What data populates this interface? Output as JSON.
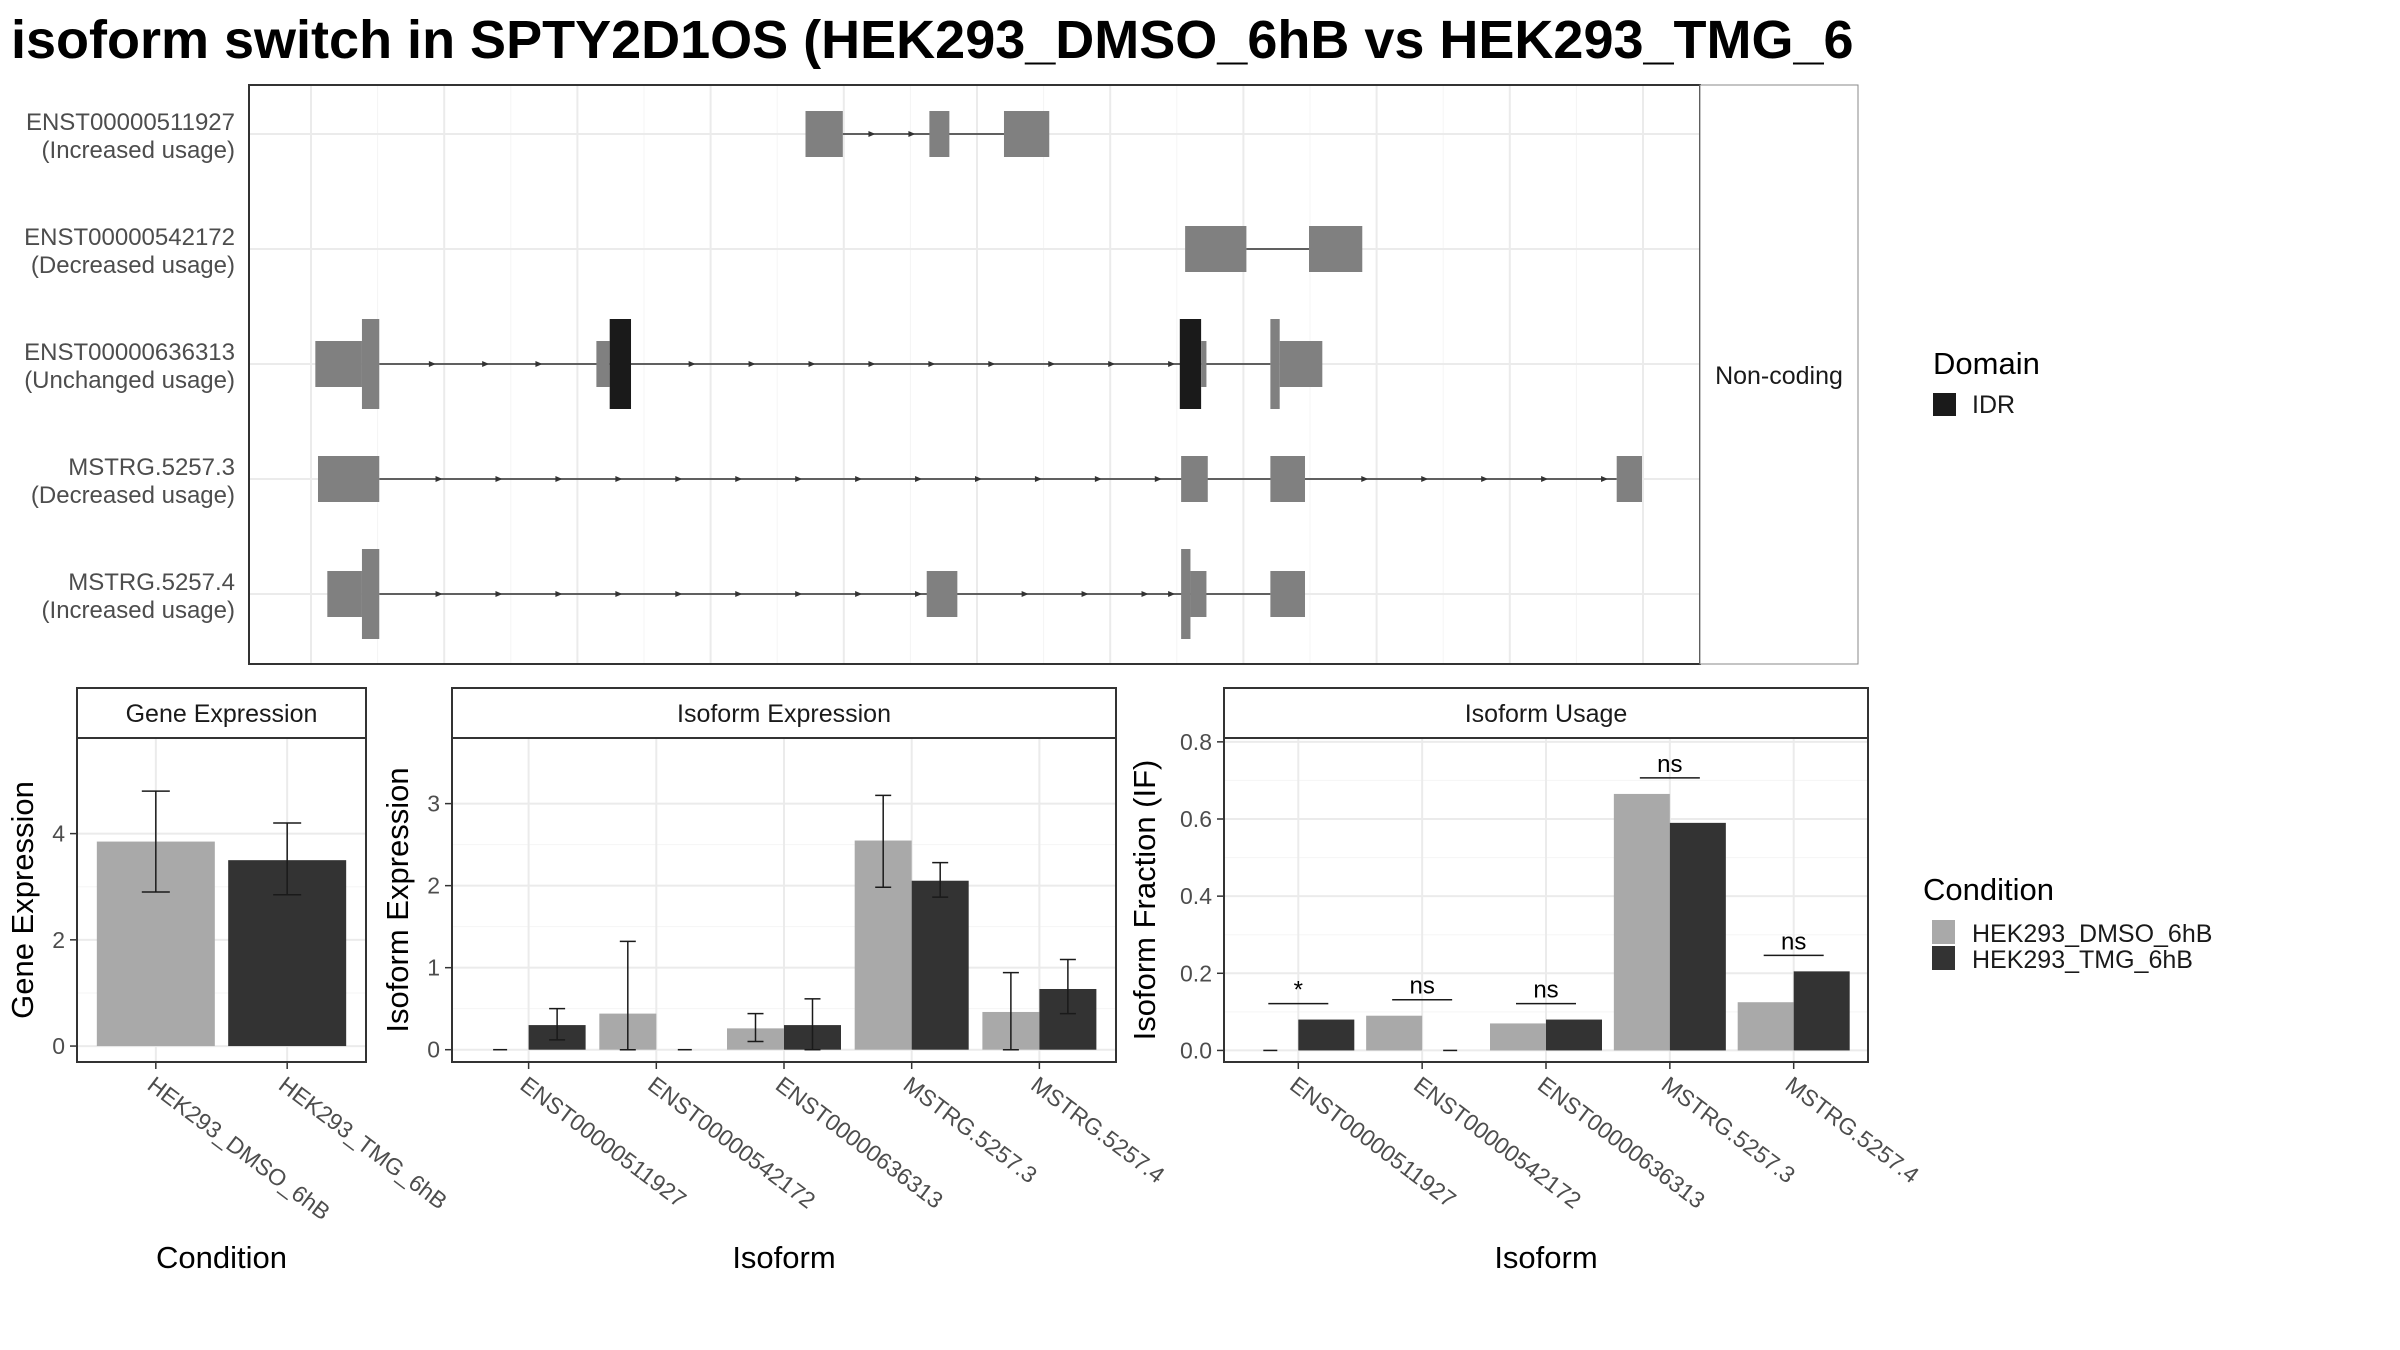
{
  "title": "isoform switch in SPTY2D1OS (HEK293_DMSO_6hB vs HEK293_TMG_6",
  "chart_data": [
    {
      "type": "transcript-structure",
      "panel": "isoform structure",
      "strip_label": "Non-coding",
      "x_range": [
        0,
        1
      ],
      "transcripts": [
        {
          "name": "ENST00000511927",
          "usage": "(Increased usage)",
          "exons": [
            [
              0.369,
              0.397,
              "s"
            ],
            [
              0.462,
              0.477,
              "s"
            ],
            [
              0.518,
              0.552,
              "s"
            ]
          ],
          "arrows": [
            0.42,
            0.45,
            0.47
          ],
          "connect": [
            0.397,
            0.518
          ]
        },
        {
          "name": "ENST00000542172",
          "usage": "(Decreased usage)",
          "exons": [
            [
              0.654,
              0.7,
              "s"
            ],
            [
              0.747,
              0.787,
              "s"
            ]
          ],
          "arrows": [],
          "connect": [
            0.7,
            0.747
          ]
        },
        {
          "name": "ENST00000636313",
          "usage": "(Unchanged usage)",
          "exons": [
            [
              0.001,
              0.036,
              "s"
            ],
            [
              0.036,
              0.049,
              "t"
            ],
            [
              0.212,
              0.222,
              "s"
            ],
            [
              0.222,
              0.238,
              "d"
            ],
            [
              0.65,
              0.666,
              "d"
            ],
            [
              0.666,
              0.67,
              "s"
            ],
            [
              0.718,
              0.725,
              "t"
            ],
            [
              0.725,
              0.757,
              "s"
            ]
          ],
          "arrows": [
            0.09,
            0.13,
            0.17,
            0.285,
            0.33,
            0.375,
            0.42,
            0.465,
            0.51,
            0.555,
            0.6,
            0.645
          ],
          "connect": [
            0.049,
            0.718
          ]
        },
        {
          "name": "MSTRG.5257.3",
          "usage": "(Decreased usage)",
          "exons": [
            [
              0.003,
              0.049,
              "s"
            ],
            [
              0.651,
              0.671,
              "s"
            ],
            [
              0.718,
              0.744,
              "s"
            ],
            [
              0.978,
              0.997,
              "s"
            ]
          ],
          "arrows": [
            0.095,
            0.14,
            0.185,
            0.23,
            0.275,
            0.32,
            0.365,
            0.41,
            0.455,
            0.5,
            0.545,
            0.59,
            0.635,
            0.79,
            0.835,
            0.88,
            0.925,
            0.97
          ],
          "connect": [
            0.049,
            0.978
          ]
        },
        {
          "name": "MSTRG.5257.4",
          "usage": "(Increased usage)",
          "exons": [
            [
              0.01,
              0.036,
              "s"
            ],
            [
              0.036,
              0.049,
              "t"
            ],
            [
              0.46,
              0.483,
              "s"
            ],
            [
              0.651,
              0.658,
              "t"
            ],
            [
              0.658,
              0.67,
              "s"
            ],
            [
              0.718,
              0.744,
              "s"
            ]
          ],
          "arrows": [
            0.095,
            0.14,
            0.185,
            0.23,
            0.275,
            0.32,
            0.365,
            0.41,
            0.455,
            0.535,
            0.58,
            0.625,
            0.645
          ],
          "connect": [
            0.049,
            0.718
          ]
        }
      ]
    },
    {
      "type": "bar",
      "panel": "Gene Expression",
      "xlabel": "Condition",
      "ylabel": "Gene Expression",
      "ylim": [
        -0.3,
        5.8
      ],
      "yticks": [
        0,
        2,
        4
      ],
      "categories": [
        "HEK293_DMSO_6hB",
        "HEK293_TMG_6hB"
      ],
      "values": [
        3.85,
        3.5
      ],
      "errors": [
        [
          2.9,
          4.8
        ],
        [
          2.85,
          4.2
        ]
      ],
      "fills": [
        "#a9a9a9",
        "#333333"
      ]
    },
    {
      "type": "bar",
      "panel": "Isoform Expression",
      "xlabel": "Isoform",
      "ylabel": "Isoform Expression",
      "ylim": [
        -0.15,
        3.8
      ],
      "yticks": [
        0,
        1,
        2,
        3
      ],
      "categories": [
        "ENST00000511927",
        "ENST00000542172",
        "ENST00000636313",
        "MSTRG.5257.3",
        "MSTRG.5257.4"
      ],
      "series": [
        {
          "name": "HEK293_DMSO_6hB",
          "values": [
            0,
            0.44,
            0.26,
            2.55,
            0.46
          ],
          "errors": [
            [
              0,
              0
            ],
            [
              0,
              1.32
            ],
            [
              0.1,
              0.44
            ],
            [
              1.98,
              3.1
            ],
            [
              0,
              0.94
            ]
          ]
        },
        {
          "name": "HEK293_TMG_6hB",
          "values": [
            0.3,
            0,
            0.3,
            2.06,
            0.74
          ],
          "errors": [
            [
              0.12,
              0.5
            ],
            [
              0,
              0
            ],
            [
              0,
              0.62
            ],
            [
              1.86,
              2.28
            ],
            [
              0.44,
              1.1
            ]
          ]
        }
      ]
    },
    {
      "type": "bar",
      "panel": "Isoform Usage",
      "xlabel": "Isoform",
      "ylabel": "Isoform Fraction (IF)",
      "ylim": [
        -0.03,
        0.81
      ],
      "yticks": [
        0.0,
        0.2,
        0.4,
        0.6,
        0.8
      ],
      "categories": [
        "ENST00000511927",
        "ENST00000542172",
        "ENST00000636313",
        "MSTRG.5257.3",
        "MSTRG.5257.4"
      ],
      "series": [
        {
          "name": "HEK293_DMSO_6hB",
          "values": [
            0,
            0.09,
            0.07,
            0.665,
            0.125
          ]
        },
        {
          "name": "HEK293_TMG_6hB",
          "values": [
            0.08,
            0,
            0.08,
            0.59,
            0.205
          ]
        }
      ],
      "significance": [
        "*",
        "ns",
        "ns",
        "ns",
        "ns"
      ]
    }
  ],
  "legends": {
    "domain": {
      "title": "Domain",
      "items": [
        {
          "label": "IDR",
          "color": "#1a1a1a"
        }
      ]
    },
    "condition": {
      "title": "Condition",
      "items": [
        {
          "label": "HEK293_DMSO_6hB",
          "color": "#a9a9a9"
        },
        {
          "label": "HEK293_TMG_6hB",
          "color": "#333333"
        }
      ]
    }
  }
}
